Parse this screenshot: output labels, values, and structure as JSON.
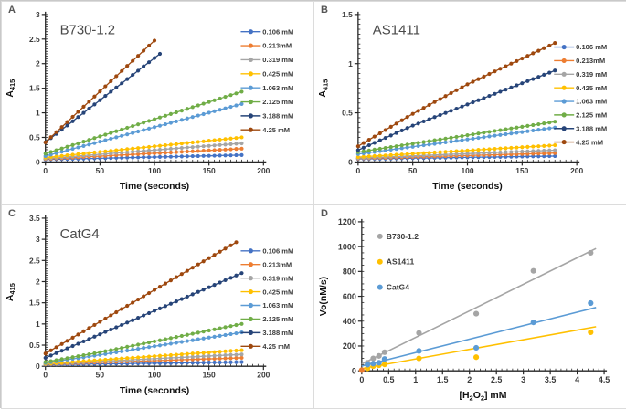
{
  "figure": {
    "description": "Four-panel enzyme kinetics figure: peroxidase activity (A415 vs time) of three G-quadruplex DNAzymes at eight H2O2 concentrations (panels A-C) and initial velocity Vo vs H2O2 concentration with linear fits (panel D)."
  },
  "chart_data": [
    {
      "panel": "A",
      "letter": "A",
      "type": "line",
      "title": "B730-1.2",
      "xlabel": "Time (seconds)",
      "ylabel": "A~415~",
      "xlim": [
        0,
        200
      ],
      "ylim": [
        0,
        3
      ],
      "xticks": [
        0,
        50,
        100,
        150,
        200
      ],
      "yticks": [
        0,
        0.5,
        1,
        1.5,
        2,
        2.5,
        3
      ],
      "marker_interval_s": 5,
      "legend_position": "right",
      "grid": false,
      "series": [
        {
          "label": "0.106 mM",
          "color": "#4472C4",
          "anchors": [
            [
              0,
              0.05
            ],
            [
              180,
              0.14
            ]
          ]
        },
        {
          "label": "0.213mM",
          "color": "#ED7D31",
          "anchors": [
            [
              0,
              0.06
            ],
            [
              180,
              0.27
            ]
          ]
        },
        {
          "label": "0.319 mM",
          "color": "#A5A5A5",
          "anchors": [
            [
              0,
              0.07
            ],
            [
              180,
              0.38
            ]
          ]
        },
        {
          "label": "0.425 mM",
          "color": "#FFC000",
          "anchors": [
            [
              0,
              0.09
            ],
            [
              180,
              0.5
            ]
          ]
        },
        {
          "label": "1.063 mM",
          "color": "#5B9BD5",
          "anchors": [
            [
              0,
              0.12
            ],
            [
              180,
              1.18
            ]
          ]
        },
        {
          "label": "2.125 mM",
          "color": "#70AD47",
          "anchors": [
            [
              0,
              0.17
            ],
            [
              180,
              1.43
            ]
          ]
        },
        {
          "label": "3.188 mM",
          "color": "#264478",
          "anchors": [
            [
              0,
              0.4
            ],
            [
              105,
              2.2
            ]
          ]
        },
        {
          "label": "4.25 mM",
          "color": "#9E480E",
          "anchors": [
            [
              0,
              0.4
            ],
            [
              100,
              2.47
            ]
          ]
        }
      ]
    },
    {
      "panel": "B",
      "letter": "B",
      "type": "line",
      "title": "AS1411",
      "xlabel": "Time (seconds)",
      "ylabel": "A~415~",
      "xlim": [
        0,
        200
      ],
      "ylim": [
        0,
        1.5
      ],
      "xticks": [
        0,
        50,
        100,
        150,
        200
      ],
      "yticks": [
        0,
        0.5,
        1,
        1.5
      ],
      "marker_interval_s": 5,
      "legend_position": "right",
      "grid": false,
      "series": [
        {
          "label": "0.106 mM",
          "color": "#4472C4",
          "anchors": [
            [
              0,
              0.03
            ],
            [
              180,
              0.06
            ]
          ]
        },
        {
          "label": "0.213mM",
          "color": "#ED7D31",
          "anchors": [
            [
              0,
              0.035
            ],
            [
              180,
              0.09
            ]
          ]
        },
        {
          "label": "0.319 mM",
          "color": "#A5A5A5",
          "anchors": [
            [
              0,
              0.04
            ],
            [
              180,
              0.12
            ]
          ]
        },
        {
          "label": "0.425 mM",
          "color": "#FFC000",
          "anchors": [
            [
              0,
              0.05
            ],
            [
              180,
              0.17
            ]
          ]
        },
        {
          "label": "1.063 mM",
          "color": "#5B9BD5",
          "anchors": [
            [
              0,
              0.08
            ],
            [
              180,
              0.35
            ]
          ]
        },
        {
          "label": "2.125 mM",
          "color": "#70AD47",
          "anchors": [
            [
              0,
              0.1
            ],
            [
              180,
              0.41
            ]
          ]
        },
        {
          "label": "3.188 mM",
          "color": "#264478",
          "anchors": [
            [
              0,
              0.12
            ],
            [
              50,
              0.37
            ],
            [
              180,
              0.93
            ]
          ]
        },
        {
          "label": "4.25 mM",
          "color": "#9E480E",
          "anchors": [
            [
              0,
              0.16
            ],
            [
              50,
              0.49
            ],
            [
              100,
              0.79
            ],
            [
              180,
              1.21
            ]
          ]
        }
      ]
    },
    {
      "panel": "C",
      "letter": "C",
      "type": "line",
      "title": "CatG4",
      "xlabel": "Time (seconds)",
      "ylabel": "A~415~",
      "xlim": [
        0,
        200
      ],
      "ylim": [
        0,
        3.5
      ],
      "xticks": [
        0,
        50,
        100,
        150,
        200
      ],
      "yticks": [
        0,
        0.5,
        1,
        1.5,
        2,
        2.5,
        3,
        3.5
      ],
      "marker_interval_s": 5,
      "legend_position": "right",
      "grid": false,
      "series": [
        {
          "label": "0.106 mM",
          "color": "#4472C4",
          "anchors": [
            [
              0,
              0.04
            ],
            [
              180,
              0.1
            ]
          ]
        },
        {
          "label": "0.213mM",
          "color": "#ED7D31",
          "anchors": [
            [
              0,
              0.05
            ],
            [
              180,
              0.2
            ]
          ]
        },
        {
          "label": "0.319 mM",
          "color": "#A5A5A5",
          "anchors": [
            [
              0,
              0.055
            ],
            [
              180,
              0.28
            ]
          ]
        },
        {
          "label": "0.425 mM",
          "color": "#FFC000",
          "anchors": [
            [
              0,
              0.06
            ],
            [
              180,
              0.38
            ]
          ]
        },
        {
          "label": "1.063 mM",
          "color": "#5B9BD5",
          "anchors": [
            [
              0,
              0.08
            ],
            [
              50,
              0.27
            ],
            [
              180,
              0.8
            ]
          ]
        },
        {
          "label": "2.125 mM",
          "color": "#70AD47",
          "anchors": [
            [
              0,
              0.1
            ],
            [
              50,
              0.33
            ],
            [
              180,
              1.0
            ]
          ]
        },
        {
          "label": "3.188 mM",
          "color": "#264478",
          "anchors": [
            [
              0,
              0.2
            ],
            [
              180,
              2.2
            ]
          ]
        },
        {
          "label": "4.25 mM",
          "color": "#9E480E",
          "anchors": [
            [
              0,
              0.3
            ],
            [
              175,
              2.93
            ]
          ]
        }
      ]
    },
    {
      "panel": "D",
      "letter": "D",
      "type": "scatter",
      "title": "",
      "xlabel": "[H~2~O~2~] mM",
      "ylabel": "Vo(nM/s)",
      "xlim": [
        0,
        4.5
      ],
      "ylim": [
        0,
        1200
      ],
      "xticks": [
        0,
        0.5,
        1,
        1.5,
        2,
        2.5,
        3,
        3.5,
        4,
        4.5
      ],
      "yticks": [
        0,
        200,
        400,
        600,
        800,
        1000,
        1200
      ],
      "legend_position": "inside-top-left",
      "grid": false,
      "series": [
        {
          "label": "B730-1.2",
          "color": "#A5A5A5",
          "points": [
            [
              0.106,
              65
            ],
            [
              0.213,
              100
            ],
            [
              0.319,
              120
            ],
            [
              0.425,
              150
            ],
            [
              1.063,
              305
            ],
            [
              2.125,
              460
            ],
            [
              3.188,
              805
            ],
            [
              4.25,
              950
            ]
          ],
          "trendline": [
            [
              0,
              55
            ],
            [
              4.35,
              985
            ]
          ]
        },
        {
          "label": "AS1411",
          "color": "#FFC000",
          "points": [
            [
              0.106,
              20
            ],
            [
              0.213,
              38
            ],
            [
              0.319,
              45
            ],
            [
              0.425,
              52
            ],
            [
              1.063,
              100
            ],
            [
              2.125,
              110
            ],
            [
              4.25,
              310
            ]
          ],
          "trendline": [
            [
              0,
              18
            ],
            [
              4.35,
              355
            ]
          ]
        },
        {
          "label": "CatG4",
          "color": "#5B9BD5",
          "points": [
            [
              0.106,
              50
            ],
            [
              0.213,
              58
            ],
            [
              0.319,
              65
            ],
            [
              0.425,
              95
            ],
            [
              1.063,
              160
            ],
            [
              2.125,
              185
            ],
            [
              3.188,
              390
            ],
            [
              4.25,
              545
            ]
          ],
          "trendline": [
            [
              0,
              38
            ],
            [
              4.35,
              510
            ]
          ]
        },
        {
          "label": "",
          "color": "#ED7D31",
          "points": [
            [
              0,
              5
            ]
          ],
          "trendline": null
        }
      ]
    }
  ]
}
